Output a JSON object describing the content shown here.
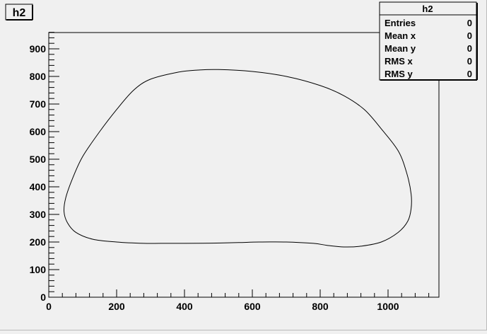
{
  "window": {
    "background": "#f0f0f0"
  },
  "title_box": {
    "label": "h2"
  },
  "stats": {
    "title": "h2",
    "rows": [
      {
        "label": "Entries",
        "value": "0"
      },
      {
        "label": "Mean x",
        "value": "0"
      },
      {
        "label": "Mean y",
        "value": "0"
      },
      {
        "label": "RMS x",
        "value": "0"
      },
      {
        "label": "RMS y",
        "value": "0"
      }
    ]
  },
  "chart_data": {
    "type": "line",
    "title": "h2",
    "xlabel": "",
    "ylabel": "",
    "xlim": [
      0,
      1150
    ],
    "ylim": [
      0,
      960
    ],
    "xticks": [
      0,
      200,
      400,
      600,
      800,
      1000
    ],
    "yticks": [
      0,
      100,
      200,
      300,
      400,
      500,
      600,
      700,
      800,
      900
    ],
    "grid": false,
    "legend": "none",
    "series": [
      {
        "closed": true,
        "color": "#000000",
        "points": [
          [
            500,
            825
          ],
          [
            600,
            818
          ],
          [
            700,
            800
          ],
          [
            800,
            767
          ],
          [
            870,
            730
          ],
          [
            930,
            680
          ],
          [
            980,
            610
          ],
          [
            1030,
            530
          ],
          [
            1055,
            450
          ],
          [
            1068,
            375
          ],
          [
            1068,
            320
          ],
          [
            1058,
            275
          ],
          [
            1030,
            235
          ],
          [
            980,
            200
          ],
          [
            920,
            185
          ],
          [
            870,
            182
          ],
          [
            820,
            188
          ],
          [
            780,
            195
          ],
          [
            700,
            200
          ],
          [
            620,
            200
          ],
          [
            560,
            198
          ],
          [
            480,
            196
          ],
          [
            400,
            195
          ],
          [
            330,
            195
          ],
          [
            280,
            195
          ],
          [
            200,
            200
          ],
          [
            130,
            210
          ],
          [
            80,
            235
          ],
          [
            55,
            270
          ],
          [
            45,
            310
          ],
          [
            50,
            360
          ],
          [
            70,
            430
          ],
          [
            100,
            510
          ],
          [
            150,
            600
          ],
          [
            200,
            680
          ],
          [
            250,
            750
          ],
          [
            300,
            790
          ],
          [
            380,
            815
          ],
          [
            440,
            823
          ],
          [
            500,
            825
          ]
        ]
      }
    ]
  }
}
